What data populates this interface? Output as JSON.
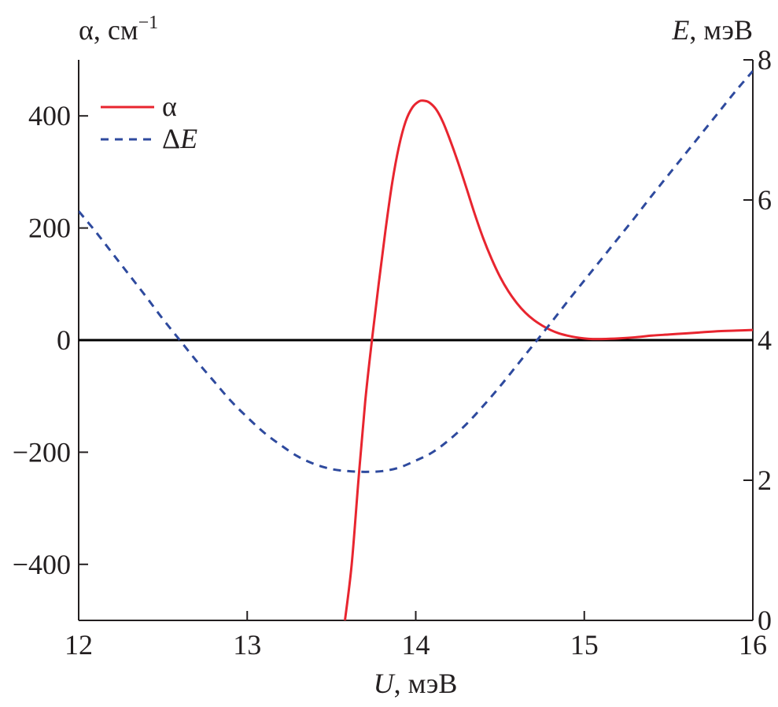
{
  "chart_data": {
    "type": "line",
    "xlabel": {
      "var": "U",
      "unit": ", мэВ"
    },
    "ylabel_left": {
      "var": "α",
      "unit": ", см",
      "sup": "−1"
    },
    "ylabel_right": {
      "var": "E",
      "unit": ", мэВ"
    },
    "xlim": [
      12,
      16
    ],
    "ylim_left": [
      -500,
      500
    ],
    "ylim_right": [
      0,
      8
    ],
    "x_ticks": [
      "12",
      "13",
      "14",
      "15",
      "16"
    ],
    "y_left_ticks": [
      {
        "value": 400,
        "label": "400"
      },
      {
        "value": 200,
        "label": "200"
      },
      {
        "value": 0,
        "label": "0"
      },
      {
        "value": -200,
        "label": "−200"
      },
      {
        "value": -400,
        "label": "−400"
      }
    ],
    "y_right_ticks": [
      {
        "value": 8,
        "label": "8"
      },
      {
        "value": 6,
        "label": "6"
      },
      {
        "value": 4,
        "label": "4"
      },
      {
        "value": 2,
        "label": "2"
      },
      {
        "value": 0,
        "label": "0"
      }
    ],
    "zero_line": {
      "axis": "left",
      "value": 0
    },
    "legend_position": "top-left",
    "series": [
      {
        "name": "α",
        "axis": "left",
        "style": "solid",
        "color": "#e8252f",
        "x": [
          13.58,
          13.62,
          13.66,
          13.7,
          13.74,
          13.78,
          13.82,
          13.86,
          13.9,
          13.94,
          13.98,
          14.02,
          14.05,
          14.08,
          14.12,
          14.16,
          14.2,
          14.25,
          14.3,
          14.35,
          14.4,
          14.45,
          14.5,
          14.55,
          14.6,
          14.65,
          14.7,
          14.75,
          14.8,
          14.85,
          14.9,
          14.95,
          15.0,
          15.05,
          15.1,
          15.2,
          15.3,
          15.4,
          15.5,
          15.6,
          15.7,
          15.8,
          15.9,
          16.0
        ],
        "y": [
          -500,
          -400,
          -250,
          -110,
          0,
          100,
          195,
          280,
          345,
          390,
          415,
          426,
          427,
          424,
          412,
          390,
          360,
          318,
          272,
          225,
          182,
          145,
          113,
          87,
          66,
          49,
          36,
          26,
          18,
          12,
          8,
          5,
          3,
          2,
          2,
          3,
          5,
          8,
          10,
          12,
          14,
          16,
          17,
          18
        ]
      },
      {
        "name": "ΔE",
        "name_prefix": "Δ",
        "name_var": "E",
        "axis": "right",
        "style": "dashed",
        "color": "#2e4a9e",
        "x": [
          12.0,
          12.1,
          12.2,
          12.3,
          12.4,
          12.5,
          12.6,
          12.7,
          12.8,
          12.9,
          13.0,
          13.1,
          13.2,
          13.3,
          13.4,
          13.5,
          13.6,
          13.7,
          13.8,
          13.9,
          14.0,
          14.1,
          14.2,
          14.3,
          14.4,
          14.5,
          14.6,
          14.7,
          14.8,
          14.9,
          15.0,
          15.1,
          15.2,
          15.3,
          15.4,
          15.5,
          15.6,
          15.7,
          15.8,
          15.9,
          16.0
        ],
        "y": [
          5.84,
          5.55,
          5.24,
          4.93,
          4.62,
          4.3,
          4.0,
          3.7,
          3.42,
          3.14,
          2.9,
          2.68,
          2.5,
          2.34,
          2.23,
          2.16,
          2.13,
          2.12,
          2.13,
          2.18,
          2.28,
          2.4,
          2.58,
          2.8,
          3.06,
          3.34,
          3.64,
          3.94,
          4.24,
          4.55,
          4.85,
          5.15,
          5.45,
          5.75,
          6.06,
          6.36,
          6.66,
          6.96,
          7.26,
          7.56,
          7.84
        ]
      }
    ]
  }
}
